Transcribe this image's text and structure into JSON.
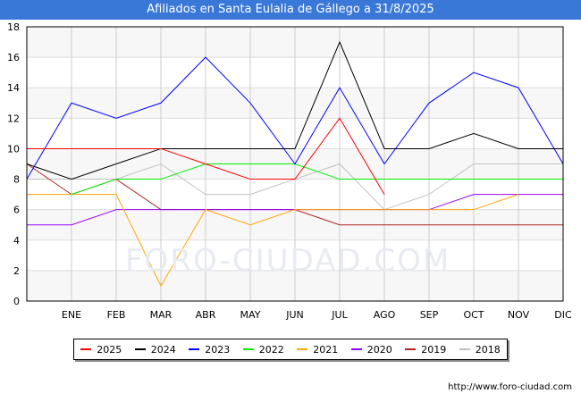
{
  "title": "Afiliados en Santa Eulalia de Gállego a 31/8/2025",
  "watermark": "FORO-CIUDAD.COM",
  "url": "http://www.foro-ciudad.com",
  "chart_data": {
    "type": "line",
    "title": "Afiliados en Santa Eulalia de Gállego a 31/8/2025",
    "categories": [
      "",
      "ENE",
      "FEB",
      "MAR",
      "ABR",
      "MAY",
      "JUN",
      "JUL",
      "AGO",
      "SEP",
      "OCT",
      "NOV",
      "DIC"
    ],
    "ylim": [
      0,
      18
    ],
    "yticks": [
      0,
      2,
      4,
      6,
      8,
      10,
      12,
      14,
      16,
      18
    ],
    "grid": true,
    "legend_position": "bottom",
    "series": [
      {
        "name": "2025",
        "color": "#ff0000",
        "values": [
          10,
          10,
          10,
          10,
          9,
          8,
          8,
          12,
          7,
          null,
          null,
          null,
          null
        ]
      },
      {
        "name": "2024",
        "color": "#000000",
        "values": [
          9,
          8,
          9,
          10,
          10,
          10,
          10,
          17,
          10,
          10,
          11,
          10,
          10
        ]
      },
      {
        "name": "2023",
        "color": "#0000ff",
        "values": [
          8,
          13,
          12,
          13,
          16,
          13,
          9,
          14,
          9,
          13,
          15,
          14,
          9
        ]
      },
      {
        "name": "2022",
        "color": "#00ee00",
        "values": [
          null,
          7,
          8,
          8,
          9,
          9,
          9,
          8,
          8,
          8,
          8,
          8,
          8
        ]
      },
      {
        "name": "2021",
        "color": "#ffa500",
        "values": [
          7,
          7,
          7,
          1,
          6,
          5,
          6,
          6,
          6,
          6,
          6,
          7,
          null
        ]
      },
      {
        "name": "2020",
        "color": "#9900ff",
        "values": [
          5,
          5,
          6,
          6,
          6,
          6,
          6,
          6,
          6,
          6,
          7,
          7,
          7
        ]
      },
      {
        "name": "2019",
        "color": "#b22222",
        "values": [
          9,
          7,
          8,
          6,
          6,
          6,
          6,
          5,
          5,
          5,
          5,
          5,
          5
        ]
      },
      {
        "name": "2018",
        "color": "#c0c0c0",
        "values": [
          8,
          8,
          8,
          9,
          7,
          7,
          8,
          9,
          6,
          7,
          9,
          9,
          9
        ]
      }
    ]
  }
}
